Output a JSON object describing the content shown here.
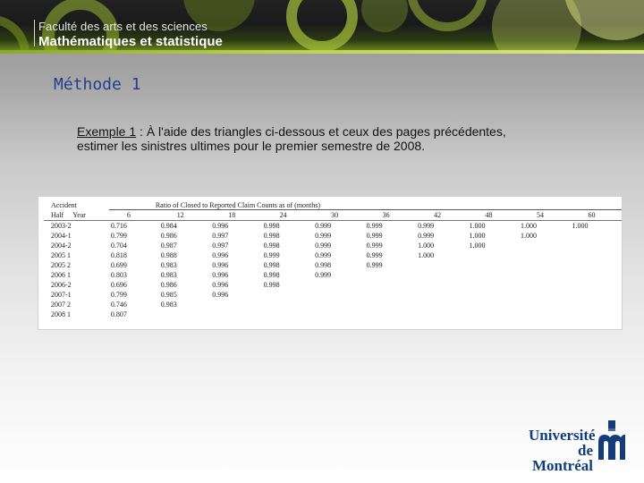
{
  "header": {
    "faculty": "Faculté des arts et des sciences",
    "department": "Mathématiques et statistique"
  },
  "slide": {
    "section_title": "Méthode 1",
    "exercise_label": "Exemple 1",
    "exercise_text_1": " : À l'aide des triangles ci-dessous et ceux des pages précédentes,",
    "exercise_text_2": "estimer les sinistres ultimes pour le premier semestre de 2008."
  },
  "table": {
    "accident_label": "Accident",
    "half_label": "Half",
    "year_label": "Year",
    "ratio_title": "Ratio of Closed to Reported Claim Counts as of (months)",
    "periods": [
      "6",
      "12",
      "18",
      "24",
      "30",
      "36",
      "42",
      "48",
      "54",
      "60"
    ],
    "rows": [
      {
        "half": "2003-2",
        "values": [
          "0.716",
          "0.984",
          "0.996",
          "0.998",
          "0.999",
          "0.999",
          "0.999",
          "1.000",
          "1.000",
          "1.000"
        ]
      },
      {
        "half": "2004-1",
        "values": [
          "0.799",
          "0.986",
          "0.997",
          "0.998",
          "0.999",
          "0.999",
          "0.999",
          "1.000",
          "1.000",
          ""
        ]
      },
      {
        "half": "2004-2",
        "values": [
          "0.704",
          "0.987",
          "0.997",
          "0.998",
          "0.999",
          "0.999",
          "1.000",
          "1.000",
          "",
          ""
        ]
      },
      {
        "half": "2005 1",
        "values": [
          "0.818",
          "0.988",
          "0.996",
          "0.999",
          "0.999",
          "0.999",
          "1.000",
          "",
          "",
          ""
        ]
      },
      {
        "half": "2005 2",
        "values": [
          "0.699",
          "0.983",
          "0.996",
          "0.998",
          "0.998",
          "0.999",
          "",
          "",
          "",
          ""
        ]
      },
      {
        "half": "2006 1",
        "values": [
          "0.803",
          "0.983",
          "0.996",
          "0.998",
          "0.999",
          "",
          "",
          "",
          "",
          ""
        ]
      },
      {
        "half": "2006-2",
        "values": [
          "0.696",
          "0.986",
          "0.996",
          "0.998",
          "",
          "",
          "",
          "",
          "",
          ""
        ]
      },
      {
        "half": "2007-1",
        "values": [
          "0.799",
          "0.985",
          "0.996",
          "",
          "",
          "",
          "",
          "",
          "",
          ""
        ]
      },
      {
        "half": "2007 2",
        "values": [
          "0.746",
          "0.983",
          "",
          "",
          "",
          "",
          "",
          "",
          "",
          ""
        ]
      },
      {
        "half": "2008 1",
        "values": [
          "0.807",
          "",
          "",
          "",
          "",
          "",
          "",
          "",
          "",
          ""
        ]
      }
    ]
  },
  "logo": {
    "line1": "Université",
    "line2": "de Montréal"
  },
  "colors": {
    "accent_green": "#8aa82a",
    "title_blue": "#233f8c",
    "logo_blue": "#123d7a"
  }
}
